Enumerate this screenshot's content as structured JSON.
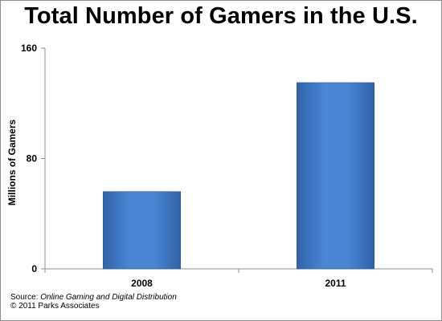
{
  "chart_data": {
    "type": "bar",
    "title": "Total Number of Gamers in the U.S.",
    "ylabel": "Millions of Gamers",
    "xlabel": "",
    "categories": [
      "2008",
      "2011"
    ],
    "values": [
      56,
      135
    ],
    "ylim": [
      0,
      160
    ],
    "yticks": [
      0,
      80,
      160
    ],
    "grid": false,
    "legend": "none",
    "bar_color": "#3f78c6"
  },
  "footer": {
    "source_prefix": "Source: ",
    "source_title": "Online Gaming and Digital Distribution",
    "copyright": "© 2011 Parks Associates"
  }
}
